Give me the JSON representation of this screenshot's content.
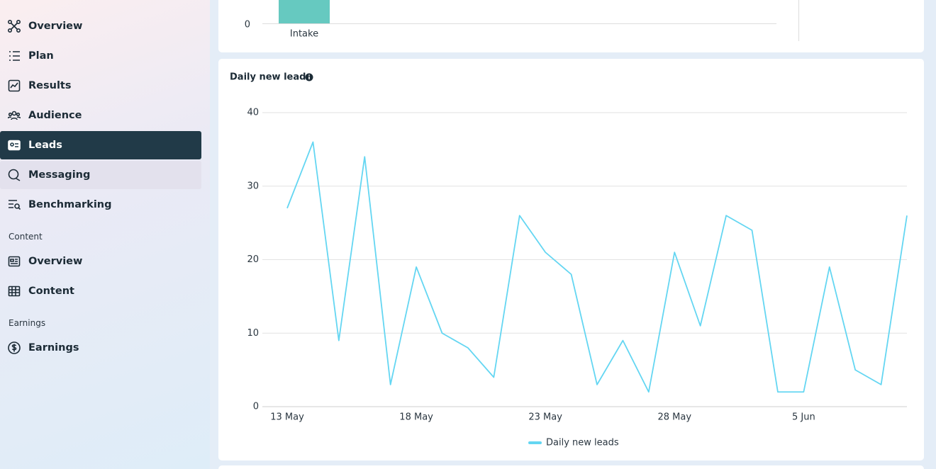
{
  "nav": [
    {
      "items": [
        "Overview",
        "Plan",
        "Results",
        "Audience",
        "Leads",
        "Messaging",
        "Benchmarking"
      ]
    },
    {
      "heading": "Content",
      "items": [
        "Overview",
        "Content"
      ]
    },
    {
      "heading": "Earnings",
      "items": [
        "Earnings"
      ]
    }
  ],
  "top_card": {
    "tick": 0,
    "category": "Intake"
  },
  "chart_data": {
    "type": "line",
    "title": "Daily new leads",
    "categories": [
      "13 May",
      null,
      null,
      null,
      null,
      "18 May",
      null,
      null,
      null,
      null,
      "23 May",
      null,
      null,
      null,
      null,
      "28 May",
      null,
      null,
      null,
      null,
      "5 Jun",
      null,
      null,
      null,
      null
    ],
    "series": [
      {
        "name": "Daily new leads",
        "color": "#64d6f2",
        "values": [
          27,
          36,
          9,
          34,
          3,
          19,
          10,
          8,
          4,
          26,
          21,
          18,
          3,
          9,
          2,
          21,
          11,
          26,
          24,
          2,
          2,
          19,
          5,
          3,
          26
        ]
      }
    ],
    "ylim": [
      0,
      40
    ],
    "yticks": [
      0,
      10,
      20,
      30,
      40
    ],
    "grid": true
  }
}
